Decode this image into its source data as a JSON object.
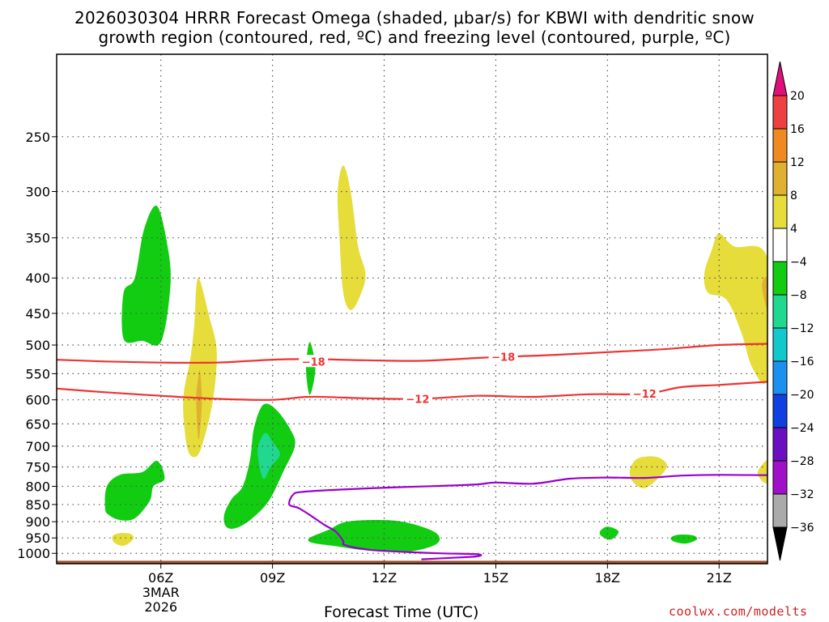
{
  "title_line1": "2026030304 HRRR Forecast Omega (shaded, μbar/s) for KBWI with dendritic snow",
  "title_line2": "growth region (contoured, red, ºC) and freezing level (contoured, purple, ºC)",
  "xlabel": "Forecast Time (UTC)",
  "credit": "coolwx.com/modelts",
  "colors": {
    "dgz_contour": "#ee3333",
    "freezing_level": "#9900cc",
    "ground": "#a0522d",
    "grid": "#555555"
  },
  "chart_data": {
    "type": "time-height cross section",
    "x_axis": {
      "units": "hours (forecast time UTC, 3 Mar 2026)",
      "range": [
        3.2,
        22.3
      ],
      "ticks": [
        {
          "hour": 6,
          "label": "06Z",
          "sublabel1": "3MAR",
          "sublabel2": "2026"
        },
        {
          "hour": 9,
          "label": "09Z"
        },
        {
          "hour": 12,
          "label": "12Z"
        },
        {
          "hour": 15,
          "label": "15Z"
        },
        {
          "hour": 18,
          "label": "18Z"
        },
        {
          "hour": 21,
          "label": "21Z"
        }
      ]
    },
    "y_axis": {
      "units": "hPa",
      "scale": "log, inverted",
      "range": [
        1035,
        190
      ],
      "levels": [
        250,
        300,
        350,
        400,
        450,
        500,
        550,
        600,
        650,
        700,
        750,
        800,
        850,
        900,
        950,
        1000
      ]
    },
    "colorbar": {
      "title": "Omega (μbar/s)",
      "labels": [
        "20",
        "16",
        "12",
        "8",
        "4",
        "−4",
        "−8",
        "−12",
        "−16",
        "−20",
        "−24",
        "−28",
        "−32",
        "−36"
      ],
      "bins": [
        {
          "min": 20,
          "max": null,
          "color": "#e0107a"
        },
        {
          "min": 16,
          "max": 20,
          "color": "#ee4040"
        },
        {
          "min": 12,
          "max": 16,
          "color": "#ee8a20"
        },
        {
          "min": 8,
          "max": 12,
          "color": "#e0b030"
        },
        {
          "min": 4,
          "max": 8,
          "color": "#e6dc3a"
        },
        {
          "min": -4,
          "max": 4,
          "color": "#ffffff"
        },
        {
          "min": -8,
          "max": -4,
          "color": "#11cc11"
        },
        {
          "min": -12,
          "max": -8,
          "color": "#20d890"
        },
        {
          "min": -16,
          "max": -12,
          "color": "#11c8cc"
        },
        {
          "min": -20,
          "max": -16,
          "color": "#1a90f0"
        },
        {
          "min": -24,
          "max": -20,
          "color": "#1040e0"
        },
        {
          "min": -28,
          "max": -24,
          "color": "#6a10c0"
        },
        {
          "min": -32,
          "max": -28,
          "color": "#a010c8"
        },
        {
          "min": -36,
          "max": -32,
          "color": "#aaaaaa"
        },
        {
          "min": null,
          "max": -36,
          "color": "#000000"
        }
      ]
    },
    "omega_regions": [
      {
        "bin": "-8 to -4",
        "color": "#11cc11",
        "points": [
          [
            5.0,
            490
          ],
          [
            5.0,
            420
          ],
          [
            5.3,
            400
          ],
          [
            5.55,
            340
          ],
          [
            5.9,
            315
          ],
          [
            6.2,
            365
          ],
          [
            6.25,
            415
          ],
          [
            6.0,
            495
          ],
          [
            5.5,
            493
          ]
        ]
      },
      {
        "bin": "-8 to -4",
        "color": "#11cc11",
        "points": [
          [
            4.5,
            860
          ],
          [
            4.55,
            800
          ],
          [
            4.9,
            770
          ],
          [
            5.5,
            763
          ],
          [
            5.9,
            735
          ],
          [
            6.1,
            780
          ],
          [
            5.8,
            800
          ],
          [
            5.7,
            840
          ],
          [
            5.3,
            890
          ],
          [
            4.9,
            895
          ],
          [
            4.6,
            880
          ]
        ]
      },
      {
        "bin": "4 to 8",
        "color": "#e6dc3a",
        "points": [
          [
            4.7,
            945
          ],
          [
            4.9,
            935
          ],
          [
            5.2,
            938
          ],
          [
            5.25,
            955
          ],
          [
            5.0,
            975
          ],
          [
            4.75,
            965
          ]
        ]
      },
      {
        "bin": "4 to 8",
        "color": "#e6dc3a",
        "points": [
          [
            6.6,
            600
          ],
          [
            6.8,
            520
          ],
          [
            6.9,
            465
          ],
          [
            7.0,
            400
          ],
          [
            7.3,
            455
          ],
          [
            7.5,
            510
          ],
          [
            7.4,
            600
          ],
          [
            7.1,
            700
          ],
          [
            6.9,
            726
          ],
          [
            6.7,
            700
          ]
        ]
      },
      {
        "bin": "8 to 12",
        "color": "#e0b030",
        "points": [
          [
            6.95,
            600
          ],
          [
            7.0,
            560
          ],
          [
            7.05,
            545
          ],
          [
            7.1,
            600
          ],
          [
            7.05,
            665
          ],
          [
            7.0,
            680
          ]
        ]
      },
      {
        "bin": "-8 to -4",
        "color": "#11cc11",
        "points": [
          [
            7.7,
            880
          ],
          [
            7.9,
            835
          ],
          [
            8.2,
            800
          ],
          [
            8.4,
            730
          ],
          [
            8.5,
            660
          ],
          [
            8.75,
            610
          ],
          [
            9.1,
            620
          ],
          [
            9.5,
            665
          ],
          [
            9.6,
            700
          ],
          [
            9.3,
            760
          ],
          [
            8.9,
            840
          ],
          [
            8.4,
            895
          ],
          [
            8.0,
            920
          ],
          [
            7.75,
            915
          ]
        ]
      },
      {
        "bin": "-12 to -8",
        "color": "#20d890",
        "points": [
          [
            8.6,
            710
          ],
          [
            8.8,
            670
          ],
          [
            9.0,
            690
          ],
          [
            9.2,
            720
          ],
          [
            8.95,
            750
          ],
          [
            8.75,
            780
          ]
        ]
      },
      {
        "bin": "-8 to -4",
        "color": "#11cc11",
        "points": [
          [
            9.9,
            540
          ],
          [
            10.0,
            495
          ],
          [
            10.15,
            540
          ],
          [
            10.0,
            590
          ]
        ]
      },
      {
        "bin": "4 to 8",
        "color": "#e6dc3a",
        "points": [
          [
            10.8,
            350
          ],
          [
            10.75,
            300
          ],
          [
            10.9,
            275
          ],
          [
            11.1,
            300
          ],
          [
            11.3,
            360
          ],
          [
            11.5,
            395
          ],
          [
            11.35,
            425
          ],
          [
            11.1,
            445
          ],
          [
            10.9,
            420
          ]
        ]
      },
      {
        "bin": "-8 to -4",
        "color": "#11cc11",
        "points": [
          [
            10.0,
            950
          ],
          [
            10.5,
            925
          ],
          [
            11.0,
            900
          ],
          [
            12.0,
            895
          ],
          [
            12.7,
            905
          ],
          [
            13.4,
            935
          ],
          [
            13.4,
            970
          ],
          [
            12.6,
            995
          ],
          [
            11.5,
            990
          ],
          [
            10.6,
            975
          ],
          [
            10.05,
            965
          ]
        ]
      },
      {
        "bin": "4 to 8",
        "color": "#e6dc3a",
        "points": [
          [
            18.6,
            760
          ],
          [
            18.8,
            730
          ],
          [
            19.3,
            725
          ],
          [
            19.6,
            745
          ],
          [
            19.4,
            775
          ],
          [
            19.0,
            805
          ],
          [
            18.7,
            790
          ]
        ]
      },
      {
        "bin": "-8 to -4",
        "color": "#11cc11",
        "points": [
          [
            17.8,
            930
          ],
          [
            18.0,
            915
          ],
          [
            18.3,
            930
          ],
          [
            18.1,
            955
          ],
          [
            17.85,
            945
          ]
        ]
      },
      {
        "bin": "-8 to -4",
        "color": "#11cc11",
        "points": [
          [
            19.7,
            950
          ],
          [
            19.9,
            940
          ],
          [
            20.3,
            942
          ],
          [
            20.4,
            955
          ],
          [
            20.1,
            968
          ],
          [
            19.8,
            962
          ]
        ]
      },
      {
        "bin": "4 to 8",
        "color": "#e6dc3a",
        "points": [
          [
            20.6,
            395
          ],
          [
            20.8,
            365
          ],
          [
            21.0,
            345
          ],
          [
            21.4,
            360
          ],
          [
            22.3,
            375
          ],
          [
            22.3,
            555
          ],
          [
            21.9,
            540
          ],
          [
            21.6,
            480
          ],
          [
            21.2,
            430
          ],
          [
            20.7,
            420
          ]
        ]
      },
      {
        "bin": "8 to 12",
        "color": "#e0b030",
        "points": [
          [
            22.15,
            410
          ],
          [
            22.3,
            400
          ],
          [
            22.3,
            445
          ]
        ]
      },
      {
        "bin": "4 to 8",
        "color": "#e6dc3a",
        "points": [
          [
            22.05,
            760
          ],
          [
            22.3,
            735
          ],
          [
            22.3,
            790
          ],
          [
            22.1,
            780
          ]
        ]
      }
    ],
    "dgz_contours": [
      {
        "value": -18,
        "label": "−18",
        "label_positions": [
          [
            10.1,
            528
          ],
          [
            15.2,
            520
          ]
        ],
        "points": [
          [
            3.2,
            525
          ],
          [
            4.5,
            528
          ],
          [
            6.0,
            530
          ],
          [
            7.5,
            530
          ],
          [
            9.0,
            525
          ],
          [
            10.0,
            524
          ],
          [
            11.5,
            526
          ],
          [
            13.0,
            527
          ],
          [
            14.5,
            522
          ],
          [
            15.2,
            520
          ],
          [
            16.5,
            517
          ],
          [
            18.0,
            512
          ],
          [
            19.5,
            507
          ],
          [
            21.0,
            500
          ],
          [
            22.3,
            498
          ]
        ]
      },
      {
        "value": -12,
        "label": "−12",
        "label_positions": [
          [
            12.9,
            598
          ],
          [
            19.0,
            588
          ]
        ],
        "points": [
          [
            3.2,
            578
          ],
          [
            4.5,
            585
          ],
          [
            6.0,
            592
          ],
          [
            7.5,
            598
          ],
          [
            9.0,
            600
          ],
          [
            10.0,
            594
          ],
          [
            11.5,
            597
          ],
          [
            13.0,
            598
          ],
          [
            14.5,
            592
          ],
          [
            16.0,
            594
          ],
          [
            17.5,
            589
          ],
          [
            19.0,
            588
          ],
          [
            20.0,
            575
          ],
          [
            21.0,
            571
          ],
          [
            22.3,
            565
          ]
        ]
      }
    ],
    "freezing_level": {
      "value": 0,
      "points": [
        [
          13.0,
          1020
        ],
        [
          13.8,
          1015
        ],
        [
          14.5,
          1010
        ],
        [
          14.5,
          1003
        ],
        [
          13.5,
          1000
        ],
        [
          12.5,
          995
        ],
        [
          11.6,
          988
        ],
        [
          10.95,
          973
        ],
        [
          10.9,
          960
        ],
        [
          10.7,
          930
        ],
        [
          10.4,
          910
        ],
        [
          10.0,
          880
        ],
        [
          9.7,
          860
        ],
        [
          9.45,
          850
        ],
        [
          9.55,
          823
        ],
        [
          9.8,
          815
        ],
        [
          11.0,
          808
        ],
        [
          12.5,
          802
        ],
        [
          13.5,
          799
        ],
        [
          14.5,
          795
        ],
        [
          15.0,
          790
        ],
        [
          16.0,
          793
        ],
        [
          17.0,
          780
        ],
        [
          18.0,
          777
        ],
        [
          19.0,
          778
        ],
        [
          20.0,
          772
        ],
        [
          21.0,
          770
        ],
        [
          22.3,
          771
        ]
      ]
    },
    "ground": {
      "pressure_hPa": 1025
    }
  }
}
